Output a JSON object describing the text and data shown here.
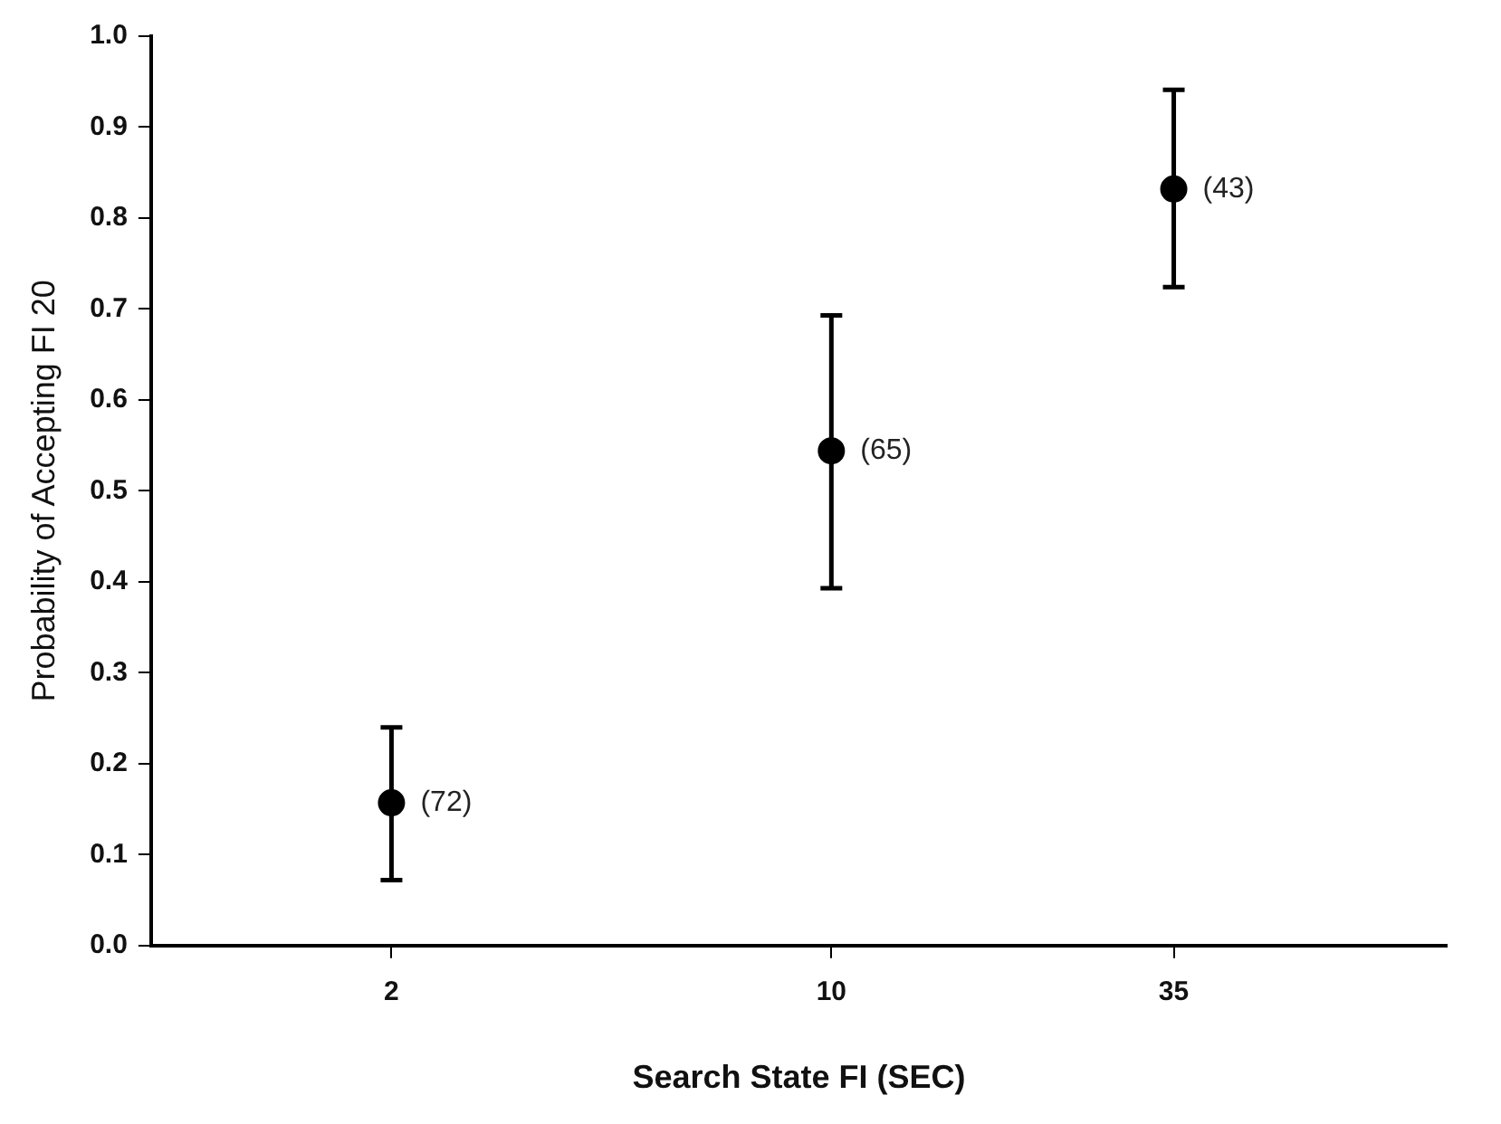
{
  "chart_data": {
    "type": "scatter",
    "xlabel": "Search State FI (SEC)",
    "ylabel": "Probability of Accepting FI 20",
    "x": [
      2,
      10,
      35
    ],
    "series": [
      {
        "color": "#000000",
        "values": [
          0.157,
          0.544,
          0.832
        ],
        "errors": [
          [
            0.072,
            0.24
          ],
          [
            0.393,
            0.693
          ],
          [
            0.724,
            0.941
          ]
        ]
      }
    ],
    "log": "x",
    "xlim": [
      0.83,
      95
    ],
    "xticks": [
      2,
      10,
      35
    ],
    "ylim": [
      0,
      1
    ],
    "yticks": [
      {
        "value": 0,
        "label": "0.0"
      },
      0.1,
      0.2,
      0.3,
      0.4,
      0.5,
      0.6,
      0.7,
      0.8,
      0.9,
      {
        "value": 1,
        "label": "1.0"
      }
    ],
    "marker": "circle",
    "annotations": [
      {
        "text": "(72)",
        "x": 2,
        "y": 0.157
      },
      {
        "text": "(65)",
        "x": 10,
        "y": 0.544
      },
      {
        "text": "(43)",
        "x": 35,
        "y": 0.832
      }
    ]
  }
}
